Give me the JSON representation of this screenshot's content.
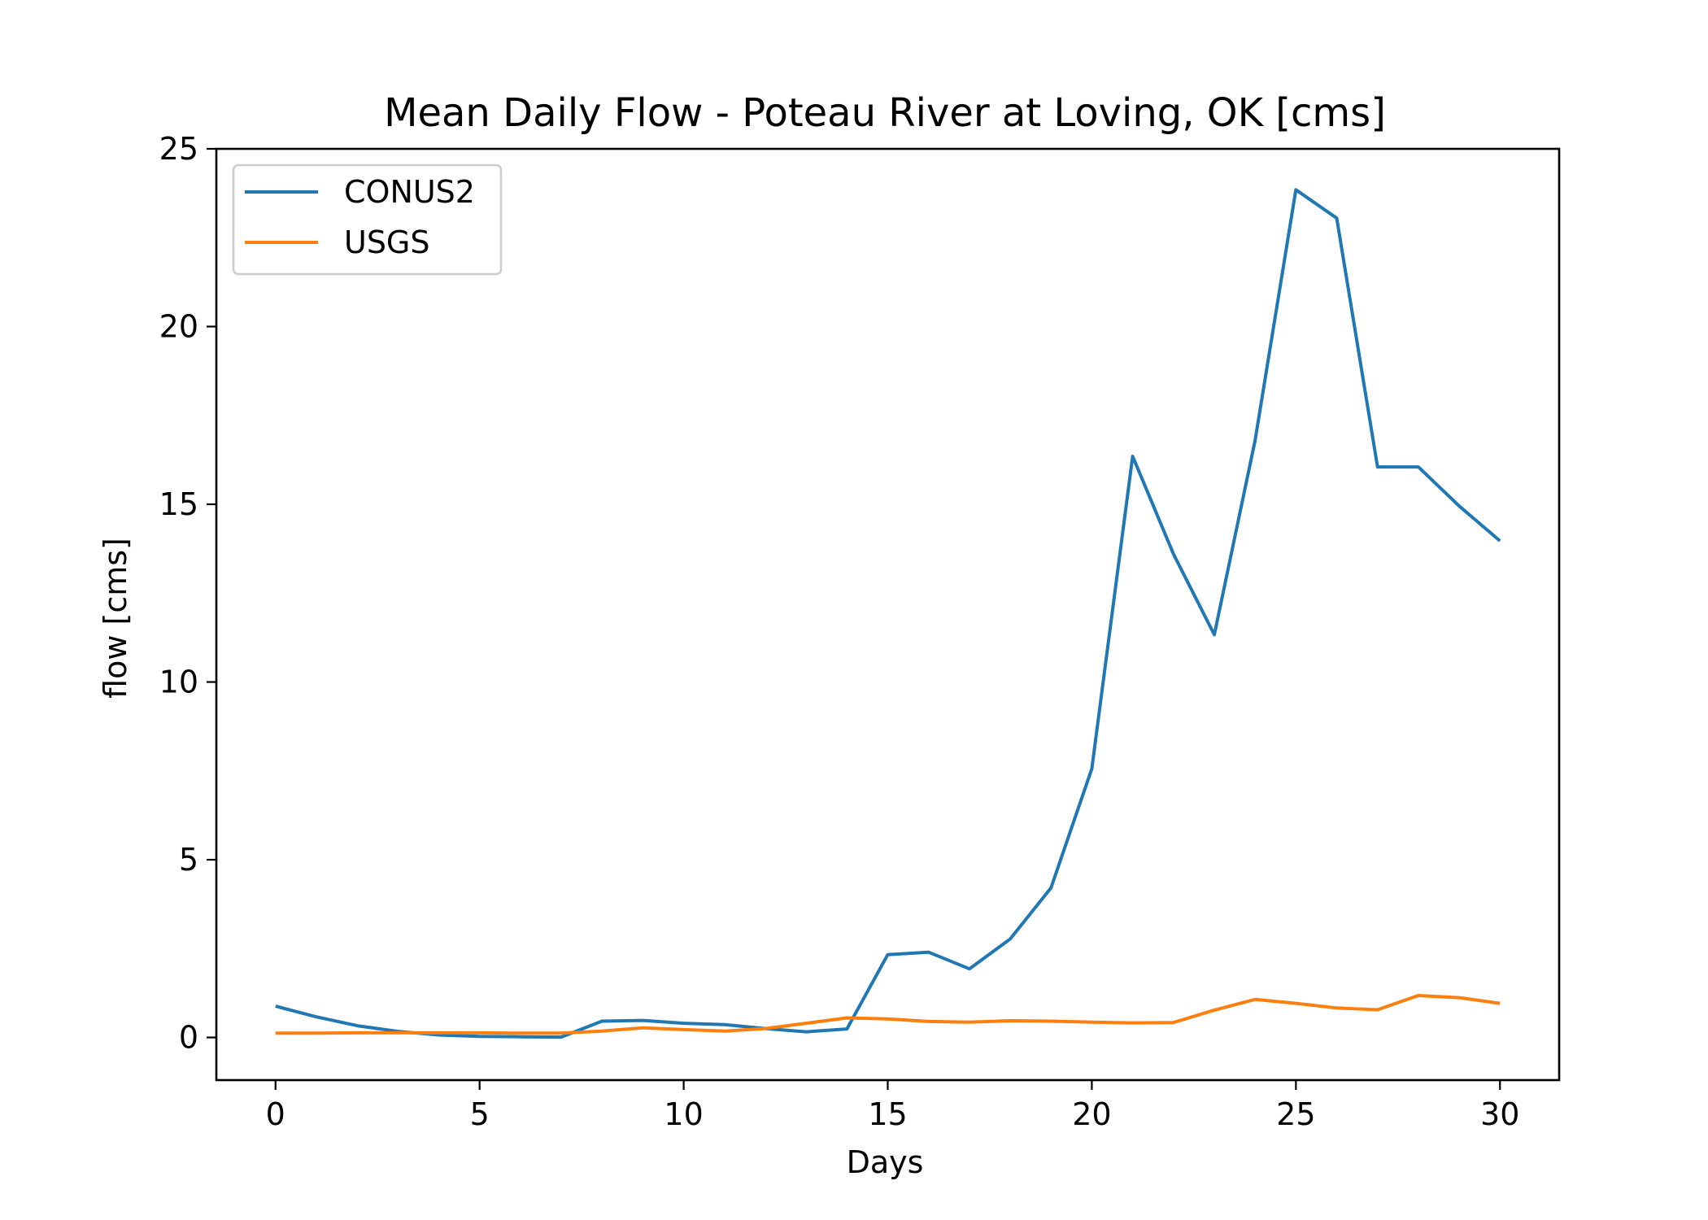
{
  "chart_data": {
    "type": "line",
    "title": "Mean Daily Flow - Poteau River at Loving, OK [cms]",
    "xlabel": "Days",
    "ylabel": "flow [cms]",
    "xlim": [
      -1.45,
      31.45
    ],
    "ylim": [
      -1.2,
      25
    ],
    "xticks": [
      "0",
      "5",
      "10",
      "15",
      "20",
      "25",
      "30"
    ],
    "yticks": [
      "0",
      "5",
      "10",
      "15",
      "20",
      "25"
    ],
    "legend_position": "top-left",
    "grid": false,
    "x": [
      0,
      1,
      2,
      3,
      4,
      5,
      6,
      7,
      8,
      9,
      10,
      11,
      12,
      13,
      14,
      15,
      16,
      17,
      18,
      19,
      20,
      21,
      22,
      23,
      24,
      25,
      26,
      27,
      28,
      29,
      30
    ],
    "series": [
      {
        "name": "CONUS2",
        "color": "#1f77b4",
        "values": [
          0.88,
          0.58,
          0.33,
          0.17,
          0.07,
          0.03,
          0.02,
          0.01,
          0.46,
          0.48,
          0.4,
          0.36,
          0.25,
          0.16,
          0.24,
          2.33,
          2.4,
          1.93,
          2.77,
          4.21,
          7.56,
          16.35,
          13.6,
          11.33,
          16.79,
          23.85,
          23.05,
          16.05,
          16.05,
          14.95,
          13.97
        ]
      },
      {
        "name": "USGS",
        "color": "#ff7f0e",
        "values": [
          0.12,
          0.12,
          0.13,
          0.13,
          0.13,
          0.13,
          0.12,
          0.12,
          0.18,
          0.27,
          0.22,
          0.18,
          0.25,
          0.4,
          0.55,
          0.52,
          0.45,
          0.43,
          0.47,
          0.46,
          0.43,
          0.41,
          0.42,
          0.77,
          1.07,
          0.96,
          0.83,
          0.78,
          1.18,
          1.12,
          0.96
        ]
      }
    ]
  }
}
